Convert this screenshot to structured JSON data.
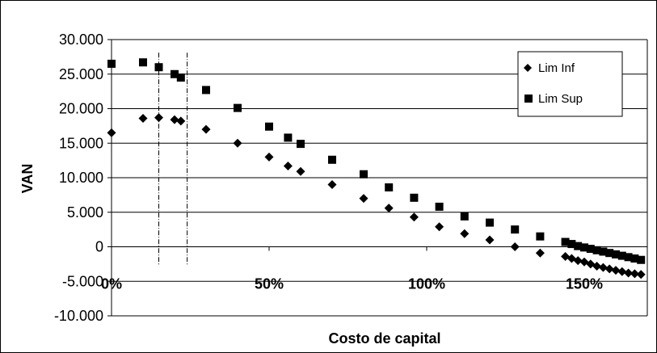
{
  "chart_data": {
    "type": "scatter",
    "xlabel": "Costo de capital",
    "ylabel": "VAN",
    "xlim": [
      0,
      1.6
    ],
    "ylim": [
      -10000,
      30000
    ],
    "y_ticks": [
      30000,
      25000,
      20000,
      15000,
      10000,
      5000,
      0,
      -5000,
      -10000
    ],
    "y_tick_labels": [
      "30.000",
      "25.000",
      "20.000",
      "15.000",
      "10.000",
      "5.000",
      "0",
      "-5.000",
      "-10.000"
    ],
    "x_ticks": [
      0,
      0.5,
      1.0,
      1.5
    ],
    "x_tick_labels": [
      "0%",
      "50%",
      "100%",
      "150%"
    ],
    "grid": "horizontal",
    "legend": "top-right",
    "vertical_lines": [
      0.15,
      0.24
    ],
    "series": [
      {
        "name": "Lim Inf",
        "marker": "diamond",
        "color": "#000000",
        "x": [
          0,
          0.1,
          0.15,
          0.2,
          0.22,
          0.3,
          0.4,
          0.5,
          0.56,
          0.6,
          0.7,
          0.8,
          0.88,
          0.96,
          1.04,
          1.12,
          1.2,
          1.28,
          1.36,
          1.44,
          1.46,
          1.48,
          1.5,
          1.52,
          1.54,
          1.56,
          1.58,
          1.6,
          1.62,
          1.64,
          1.66,
          1.68
        ],
        "y": [
          16500,
          18600,
          18700,
          18400,
          18200,
          17000,
          15000,
          13000,
          11700,
          10900,
          9000,
          7000,
          5600,
          4300,
          2900,
          1900,
          1000,
          0,
          -900,
          -1400,
          -1700,
          -2000,
          -2200,
          -2500,
          -2800,
          -3000,
          -3200,
          -3400,
          -3600,
          -3800,
          -3900,
          -4000
        ]
      },
      {
        "name": "Lim Sup",
        "marker": "square",
        "color": "#000000",
        "x": [
          0,
          0.1,
          0.15,
          0.2,
          0.22,
          0.3,
          0.4,
          0.5,
          0.56,
          0.6,
          0.7,
          0.8,
          0.88,
          0.96,
          1.04,
          1.12,
          1.2,
          1.28,
          1.36,
          1.44,
          1.46,
          1.48,
          1.5,
          1.52,
          1.54,
          1.56,
          1.58,
          1.6,
          1.62,
          1.64,
          1.66,
          1.68
        ],
        "y": [
          26500,
          26700,
          26000,
          25000,
          24500,
          22700,
          20100,
          17400,
          15800,
          14900,
          12600,
          10500,
          8600,
          7100,
          5800,
          4400,
          3500,
          2500,
          1500,
          700,
          400,
          100,
          -100,
          -300,
          -500,
          -700,
          -900,
          -1100,
          -1300,
          -1500,
          -1700,
          -1900
        ]
      }
    ]
  }
}
